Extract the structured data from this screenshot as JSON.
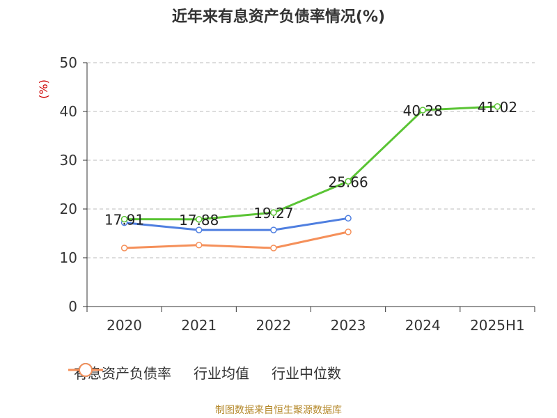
{
  "title": "近年来有息资产负债率情况(%)",
  "footer": "制图数据来自恒生聚源数据库",
  "chart_data": {
    "type": "line",
    "title": "近年来有息资产负债率情况(%)",
    "ylabel": "(%)",
    "xlabel": "",
    "categories": [
      "2020",
      "2021",
      "2022",
      "2023",
      "2024",
      "2025H1"
    ],
    "ylim": [
      0,
      50
    ],
    "yticks": [
      0,
      10,
      20,
      30,
      40,
      50
    ],
    "grid": true,
    "legend_position": "bottom",
    "series": [
      {
        "name": "有息资产负债率",
        "color": "#5ac434",
        "values": [
          17.91,
          17.88,
          19.27,
          25.66,
          40.28,
          41.02
        ],
        "labels": [
          "17.91",
          "17.88",
          "19.27",
          "25.66",
          "40.28",
          "41.02"
        ]
      },
      {
        "name": "行业均值",
        "color": "#4f7fe0",
        "values": [
          17.2,
          15.7,
          15.7,
          18.1,
          null,
          null
        ]
      },
      {
        "name": "行业中位数",
        "color": "#f5905a",
        "values": [
          12.0,
          12.6,
          12.0,
          15.3,
          null,
          null
        ]
      }
    ]
  }
}
